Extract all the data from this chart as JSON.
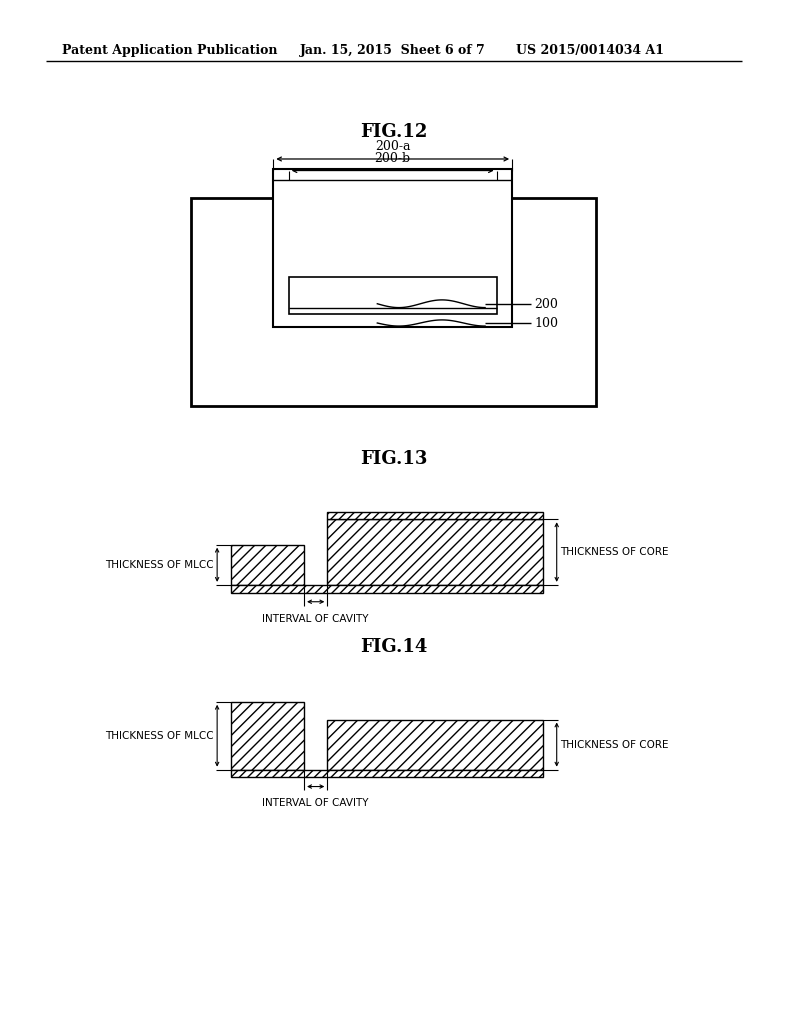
{
  "bg_color": "#ffffff",
  "text_color": "#000000",
  "header_left": "Patent Application Publication",
  "header_mid": "Jan. 15, 2015  Sheet 6 of 7",
  "header_right": "US 2015/0014034 A1",
  "fig12_title": "FIG.12",
  "fig13_title": "FIG.13",
  "fig14_title": "FIG.14",
  "label_200a": "200-a",
  "label_200b": "200-b",
  "label_200": "200",
  "label_100": "100",
  "label_thickness_mlcc": "THICKNESS OF MLCC",
  "label_thickness_core": "THICKNESS OF CORE",
  "label_interval": "INTERVAL OF CAVITY"
}
